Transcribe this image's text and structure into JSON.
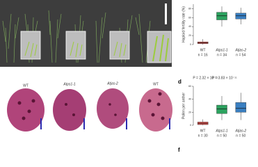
{
  "panels": {
    "d": "d",
    "f": "f"
  },
  "images": {
    "labels": [
      "WT",
      "Atps1-1",
      "Atjas-2",
      "WT"
    ]
  },
  "chart_data": [
    {
      "type": "box",
      "y_label": "Haploid fertility rate (%)",
      "categories": [
        "WT",
        "Atps1-1",
        "Atjas-2"
      ],
      "sample_sizes": [
        "n = 16",
        "n = 34",
        "n = 54"
      ],
      "colors": [
        "#d9534f",
        "#2ca25f",
        "#3a7fc1"
      ],
      "series": {
        "low": [
          0,
          40,
          45
        ],
        "q1": [
          2,
          55,
          57
        ],
        "median": [
          4,
          64,
          64
        ],
        "q3": [
          6,
          72,
          70
        ],
        "high": [
          12,
          85,
          82
        ]
      },
      "ylim": [
        0,
        90
      ],
      "yticks": [
        0,
        20,
        40,
        60,
        80
      ]
    },
    {
      "type": "box",
      "y_label": "Pollen per anther",
      "categories": [
        "WT",
        "Atps1-1",
        "Atjas-2"
      ],
      "sample_sizes": [
        "n = 30",
        "n = 50",
        "n = 50"
      ],
      "colors": [
        "#d9534f",
        "#2ca25f",
        "#3a7fc1"
      ],
      "annotations": [
        "P = 2.32 × 10⁻¹¹",
        "P = 3.83 × 10⁻¹¹"
      ],
      "series": {
        "low": [
          0,
          8,
          8
        ],
        "q1": [
          1,
          18,
          20
        ],
        "median": [
          3,
          25,
          26
        ],
        "q3": [
          5,
          31,
          35
        ],
        "high": [
          9,
          45,
          50
        ]
      },
      "ylim": [
        0,
        60
      ],
      "yticks": [
        0,
        20,
        40,
        60
      ]
    }
  ]
}
